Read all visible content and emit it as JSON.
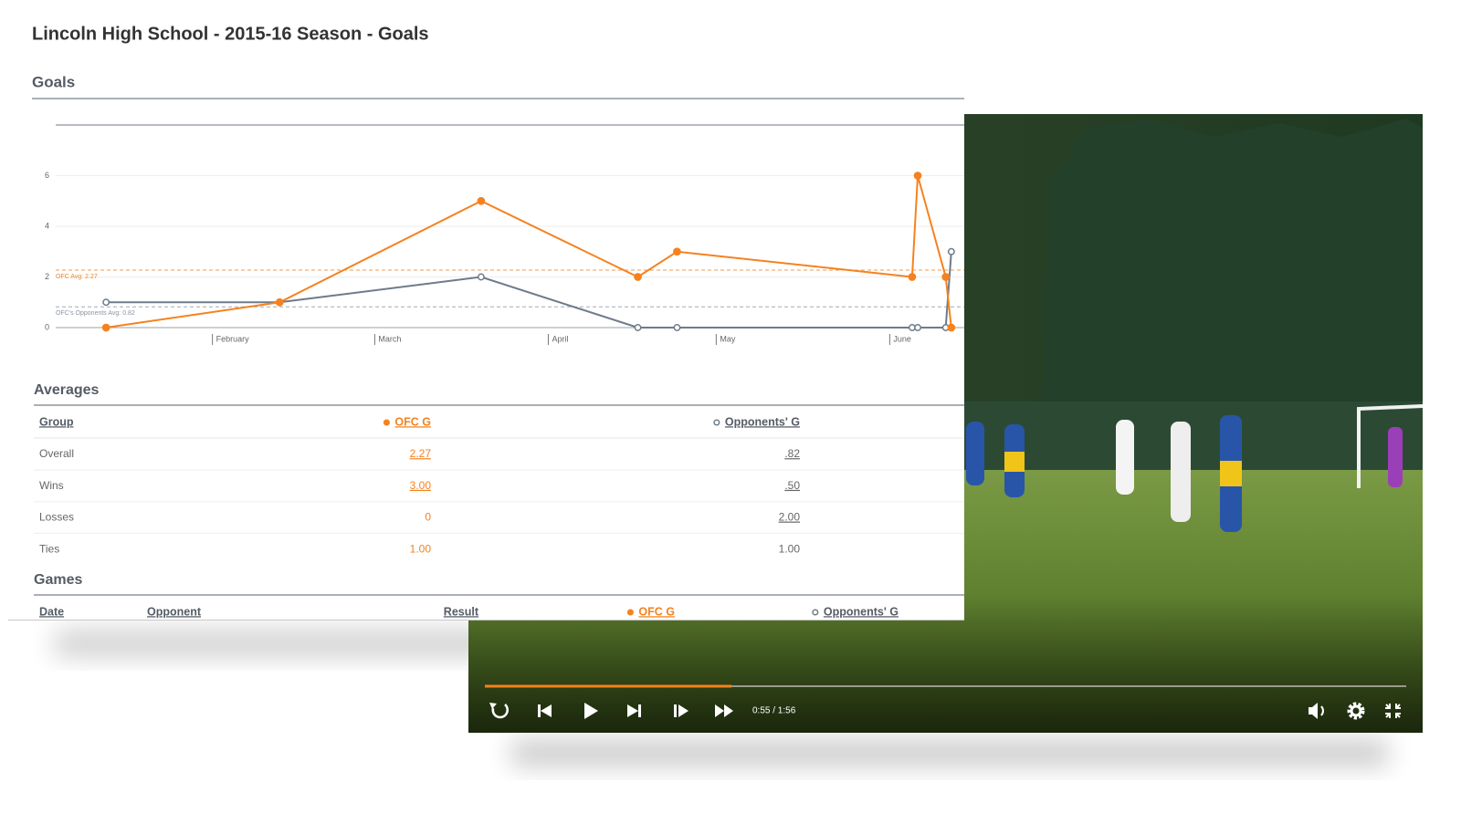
{
  "title": "Lincoln High School - 2015-16 Season - Goals",
  "chart_data": {
    "type": "line",
    "title": "Goals",
    "x": [
      12,
      43,
      79,
      107,
      114,
      156,
      157,
      162,
      163
    ],
    "xlim": [
      3,
      172
    ],
    "xticks": [
      {
        "value": 31,
        "label": "February"
      },
      {
        "value": 60,
        "label": "March"
      },
      {
        "value": 91,
        "label": "April"
      },
      {
        "value": 121,
        "label": "May"
      },
      {
        "value": 152,
        "label": "June"
      }
    ],
    "ylim": [
      0,
      8
    ],
    "yticks": [
      0,
      2,
      4,
      6
    ],
    "grid": true,
    "series": [
      {
        "color": "#f5821f",
        "marker": "filled",
        "values": [
          0,
          1,
          5,
          2,
          3,
          2,
          6,
          2,
          0
        ]
      },
      {
        "color": "#6e7b8b",
        "marker": "open",
        "values": [
          1,
          1,
          2,
          0,
          0,
          0,
          0,
          0,
          3
        ]
      }
    ],
    "reference_lines": [
      {
        "label": "OFC Avg: 2.27",
        "value": 2.27,
        "color": "#f5821f"
      },
      {
        "label": "OFC's Opponents Avg: 0.82",
        "value": 0.82,
        "color": "#8a94a3"
      }
    ]
  },
  "averages": {
    "title": "Averages",
    "columns": [
      "Group",
      "OFC G",
      "Opponents' G"
    ],
    "rows": [
      [
        "Overall",
        "2.27",
        ".82"
      ],
      [
        "Wins",
        "3.00",
        ".50"
      ],
      [
        "Losses",
        "0",
        "2.00"
      ],
      [
        "Ties",
        "1.00",
        "1.00"
      ]
    ]
  },
  "games": {
    "title": "Games",
    "columns": [
      "Date",
      "Opponent",
      "Result",
      "OFC G",
      "Opponents' G"
    ]
  },
  "player": {
    "time": "0:55 / 1:56"
  }
}
